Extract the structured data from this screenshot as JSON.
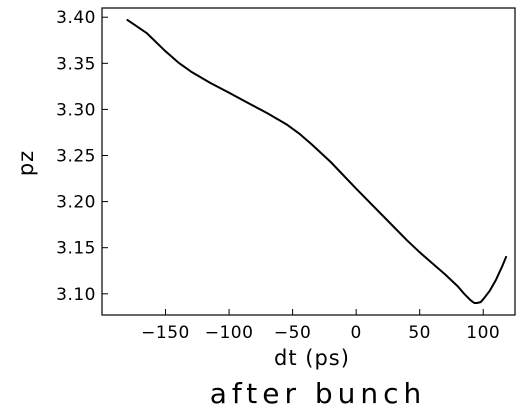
{
  "chart_data": {
    "type": "line",
    "title": "after bunch",
    "xlabel": "dt (ps)",
    "ylabel": "pz",
    "xlim": [
      -200,
      125
    ],
    "ylim": [
      3.077,
      3.41
    ],
    "xticks": [
      -150,
      -100,
      -50,
      0,
      50,
      100
    ],
    "yticks": [
      3.1,
      3.15,
      3.2,
      3.25,
      3.3,
      3.35,
      3.4
    ],
    "xtick_labels": [
      "−150",
      "−100",
      "−50",
      "0",
      "50",
      "100"
    ],
    "ytick_labels": [
      "3.10",
      "3.15",
      "3.20",
      "3.25",
      "3.30",
      "3.35",
      "3.40"
    ],
    "grid": false,
    "series": [
      {
        "color": "#000000",
        "x": [
          -180,
          -165,
          -150,
          -140,
          -130,
          -115,
          -100,
          -85,
          -70,
          -55,
          -45,
          -35,
          -20,
          0,
          20,
          40,
          50,
          60,
          70,
          80,
          85,
          90,
          93,
          95,
          98,
          100,
          105,
          110,
          115,
          118
        ],
        "y": [
          3.397,
          3.383,
          3.363,
          3.351,
          3.341,
          3.329,
          3.318,
          3.307,
          3.296,
          3.284,
          3.274,
          3.262,
          3.243,
          3.214,
          3.186,
          3.158,
          3.145,
          3.133,
          3.121,
          3.108,
          3.1,
          3.093,
          3.09,
          3.09,
          3.091,
          3.094,
          3.103,
          3.115,
          3.13,
          3.14
        ]
      }
    ]
  }
}
